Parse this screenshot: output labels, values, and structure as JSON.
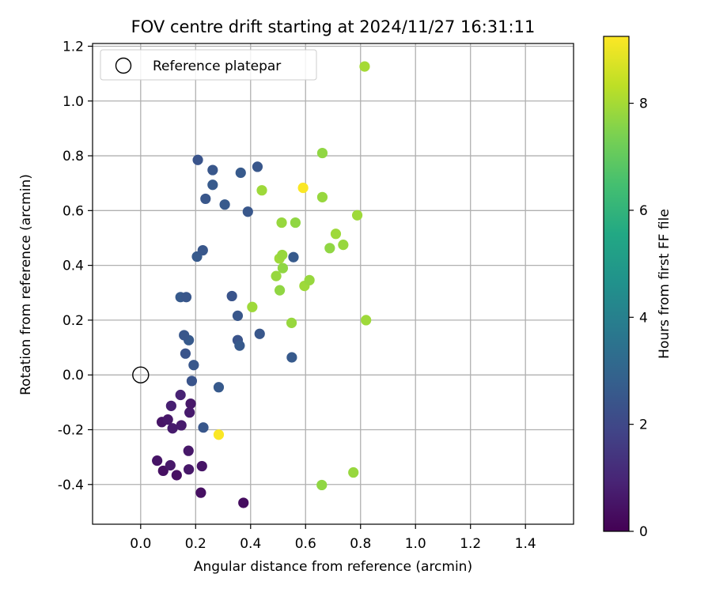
{
  "chart_data": {
    "type": "scatter",
    "title": "FOV centre drift starting at 2024/11/27 16:31:11",
    "xlabel": "Angular distance from reference (arcmin)",
    "ylabel": "Rotation from reference (arcmin)",
    "xlim": [
      -0.175,
      1.575
    ],
    "ylim": [
      -0.545,
      1.21
    ],
    "xticks": [
      "0.0",
      "0.2",
      "0.4",
      "0.6",
      "0.8",
      "1.0",
      "1.2",
      "1.4"
    ],
    "yticks": [
      "-0.4",
      "-0.2",
      "0.0",
      "0.2",
      "0.4",
      "0.6",
      "0.8",
      "1.0",
      "1.2"
    ],
    "grid": true,
    "legend": {
      "placement": "top-left",
      "entries": [
        "Reference platepar"
      ]
    },
    "reference": {
      "x": 0.0,
      "y": 0.0
    },
    "colorbar": {
      "label": "Hours from first FF file",
      "min": 0,
      "max": 9.25,
      "ticks": [
        "0",
        "2",
        "4",
        "6",
        "8"
      ],
      "colormap": "viridis"
    },
    "points": [
      {
        "x": 0.374,
        "y": -0.467,
        "h": 0.3
      },
      {
        "x": 0.219,
        "y": -0.43,
        "h": 0.4
      },
      {
        "x": 0.06,
        "y": -0.313,
        "h": 0.5
      },
      {
        "x": 0.082,
        "y": -0.35,
        "h": 0.4
      },
      {
        "x": 0.108,
        "y": -0.33,
        "h": 0.6
      },
      {
        "x": 0.131,
        "y": -0.366,
        "h": 0.4
      },
      {
        "x": 0.175,
        "y": -0.345,
        "h": 0.6
      },
      {
        "x": 0.223,
        "y": -0.333,
        "h": 0.5
      },
      {
        "x": 0.174,
        "y": -0.277,
        "h": 0.6
      },
      {
        "x": 0.077,
        "y": -0.172,
        "h": 0.5
      },
      {
        "x": 0.099,
        "y": -0.163,
        "h": 0.6
      },
      {
        "x": 0.116,
        "y": -0.195,
        "h": 0.7
      },
      {
        "x": 0.148,
        "y": -0.184,
        "h": 0.7
      },
      {
        "x": 0.178,
        "y": -0.137,
        "h": 0.7
      },
      {
        "x": 0.111,
        "y": -0.113,
        "h": 0.8
      },
      {
        "x": 0.182,
        "y": -0.105,
        "h": 0.6
      },
      {
        "x": 0.145,
        "y": -0.073,
        "h": 0.9
      },
      {
        "x": 0.228,
        "y": -0.192,
        "h": 2.5
      },
      {
        "x": 0.284,
        "y": -0.045,
        "h": 2.6
      },
      {
        "x": 0.186,
        "y": -0.022,
        "h": 2.4
      },
      {
        "x": 0.193,
        "y": 0.036,
        "h": 2.5
      },
      {
        "x": 0.163,
        "y": 0.078,
        "h": 2.4
      },
      {
        "x": 0.175,
        "y": 0.127,
        "h": 2.6
      },
      {
        "x": 0.158,
        "y": 0.145,
        "h": 2.5
      },
      {
        "x": 0.353,
        "y": 0.127,
        "h": 2.4
      },
      {
        "x": 0.36,
        "y": 0.107,
        "h": 2.6
      },
      {
        "x": 0.433,
        "y": 0.15,
        "h": 2.5
      },
      {
        "x": 0.55,
        "y": 0.064,
        "h": 2.6
      },
      {
        "x": 0.353,
        "y": 0.216,
        "h": 2.5
      },
      {
        "x": 0.332,
        "y": 0.288,
        "h": 2.4
      },
      {
        "x": 0.145,
        "y": 0.284,
        "h": 2.6
      },
      {
        "x": 0.166,
        "y": 0.284,
        "h": 2.5
      },
      {
        "x": 0.205,
        "y": 0.432,
        "h": 2.6
      },
      {
        "x": 0.226,
        "y": 0.455,
        "h": 2.5
      },
      {
        "x": 0.556,
        "y": 0.43,
        "h": 2.6
      },
      {
        "x": 0.236,
        "y": 0.643,
        "h": 2.5
      },
      {
        "x": 0.306,
        "y": 0.622,
        "h": 2.6
      },
      {
        "x": 0.39,
        "y": 0.596,
        "h": 2.5
      },
      {
        "x": 0.262,
        "y": 0.694,
        "h": 2.6
      },
      {
        "x": 0.262,
        "y": 0.748,
        "h": 2.5
      },
      {
        "x": 0.364,
        "y": 0.738,
        "h": 2.6
      },
      {
        "x": 0.425,
        "y": 0.76,
        "h": 2.5
      },
      {
        "x": 0.208,
        "y": 0.785,
        "h": 2.4
      },
      {
        "x": 0.284,
        "y": -0.218,
        "h": 9.2
      },
      {
        "x": 0.591,
        "y": 0.683,
        "h": 9.2
      },
      {
        "x": 0.659,
        "y": -0.402,
        "h": 7.7
      },
      {
        "x": 0.774,
        "y": -0.356,
        "h": 7.8
      },
      {
        "x": 0.406,
        "y": 0.248,
        "h": 7.9
      },
      {
        "x": 0.549,
        "y": 0.19,
        "h": 7.8
      },
      {
        "x": 0.82,
        "y": 0.2,
        "h": 7.9
      },
      {
        "x": 0.506,
        "y": 0.309,
        "h": 7.7
      },
      {
        "x": 0.493,
        "y": 0.361,
        "h": 7.8
      },
      {
        "x": 0.596,
        "y": 0.325,
        "h": 7.9
      },
      {
        "x": 0.614,
        "y": 0.346,
        "h": 7.8
      },
      {
        "x": 0.517,
        "y": 0.39,
        "h": 7.7
      },
      {
        "x": 0.505,
        "y": 0.425,
        "h": 7.9
      },
      {
        "x": 0.515,
        "y": 0.438,
        "h": 7.8
      },
      {
        "x": 0.688,
        "y": 0.463,
        "h": 7.7
      },
      {
        "x": 0.737,
        "y": 0.475,
        "h": 7.8
      },
      {
        "x": 0.71,
        "y": 0.515,
        "h": 7.9
      },
      {
        "x": 0.513,
        "y": 0.556,
        "h": 7.8
      },
      {
        "x": 0.563,
        "y": 0.556,
        "h": 7.7
      },
      {
        "x": 0.788,
        "y": 0.583,
        "h": 7.9
      },
      {
        "x": 0.661,
        "y": 0.649,
        "h": 7.8
      },
      {
        "x": 0.441,
        "y": 0.674,
        "h": 7.9
      },
      {
        "x": 0.661,
        "y": 0.81,
        "h": 7.7
      },
      {
        "x": 0.815,
        "y": 1.126,
        "h": 8.0
      }
    ]
  }
}
